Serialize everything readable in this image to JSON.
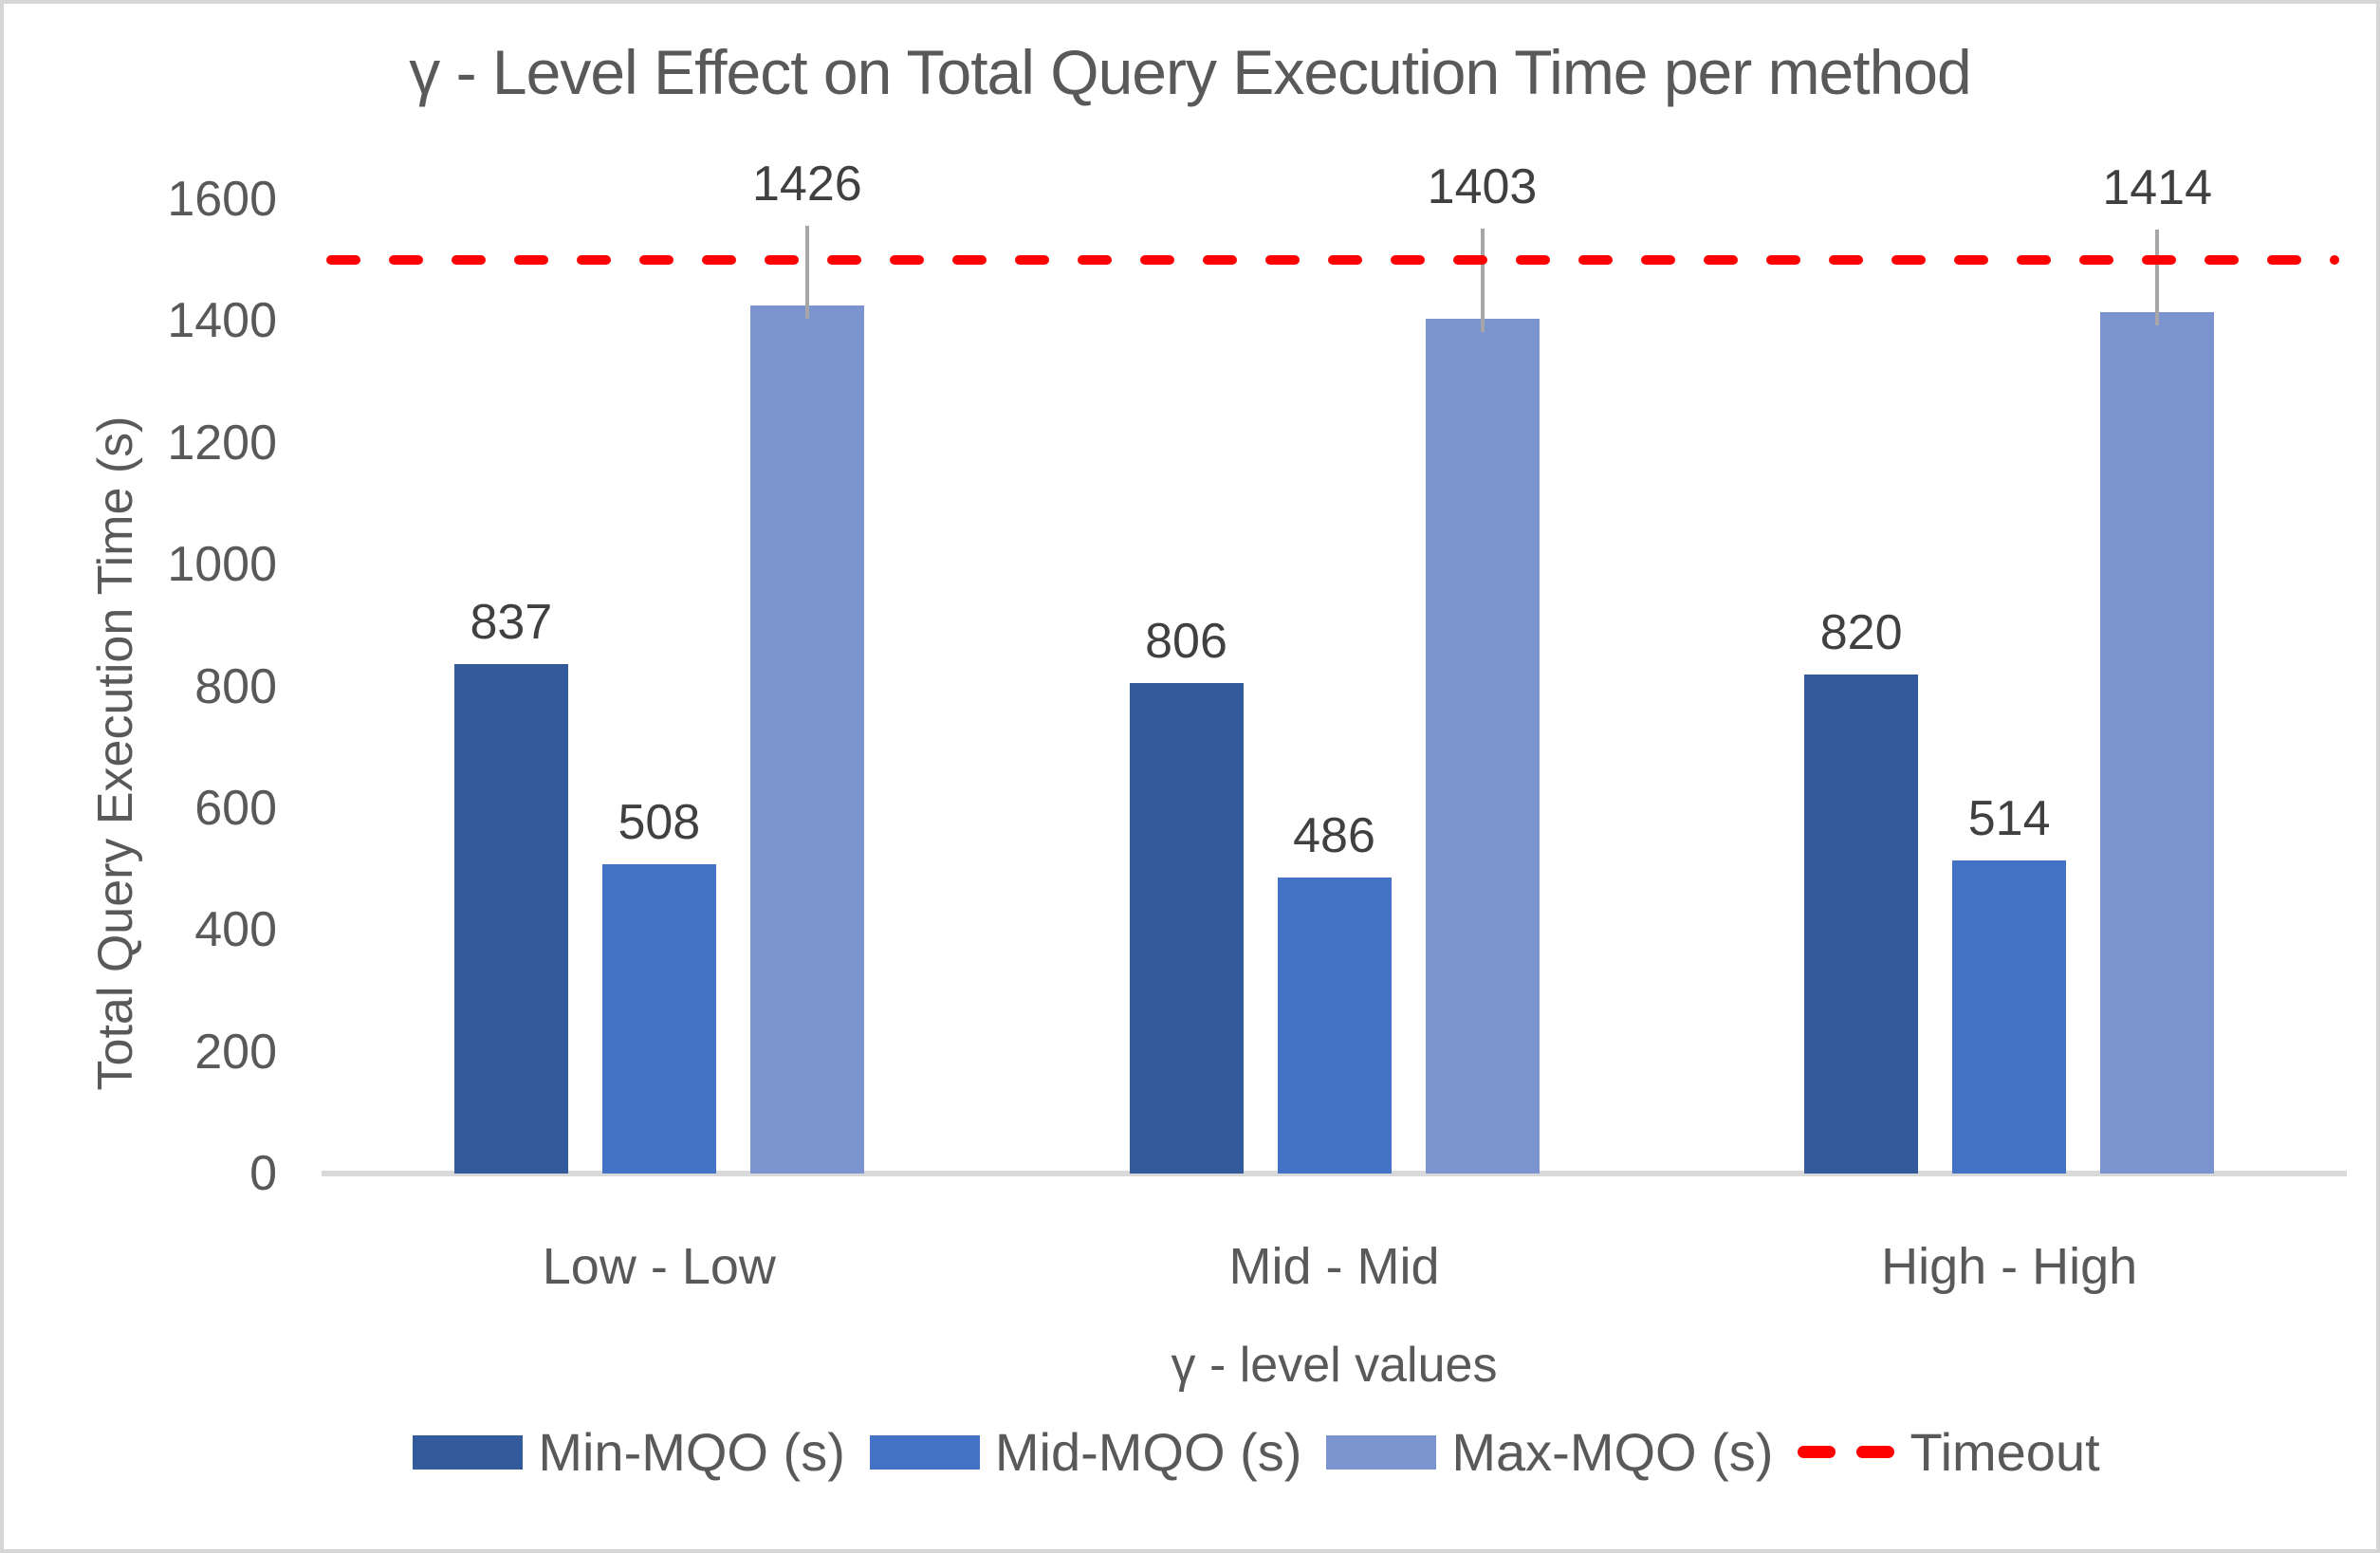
{
  "chart_data": {
    "type": "bar",
    "title": "γ - Level Effect on Total Query Execution Time per method",
    "xlabel": "γ - level values",
    "ylabel": "Total Query Execution Time (s)",
    "categories": [
      "Low - Low",
      "Mid - Mid",
      "High - High"
    ],
    "series": [
      {
        "name": "Min-MQO (s)",
        "color": "#335a9b",
        "values": [
          837,
          806,
          820
        ]
      },
      {
        "name": "Mid-MQO (s)",
        "color": "#4472c4",
        "values": [
          508,
          486,
          514
        ]
      },
      {
        "name": "Max-MQO (s)",
        "color": "#7b93cf",
        "values": [
          1426,
          1403,
          1414
        ],
        "error_whisker_top_values": [
          1556,
          1552,
          1550
        ]
      }
    ],
    "timeout_line": {
      "label": "Timeout",
      "value": 1500,
      "color": "#ff0000",
      "style": "dashed"
    },
    "ylim": [
      0,
      1600
    ],
    "yticks": [
      0,
      200,
      400,
      600,
      800,
      1000,
      1200,
      1400,
      1600
    ],
    "grid": false,
    "legend_position": "bottom",
    "data_labels": true,
    "colors": {
      "title_text": "#595959",
      "axis_text": "#595959",
      "data_label_text": "#404040",
      "axis_line": "#d9d9d9",
      "whisker": "#a6a6a6"
    }
  }
}
